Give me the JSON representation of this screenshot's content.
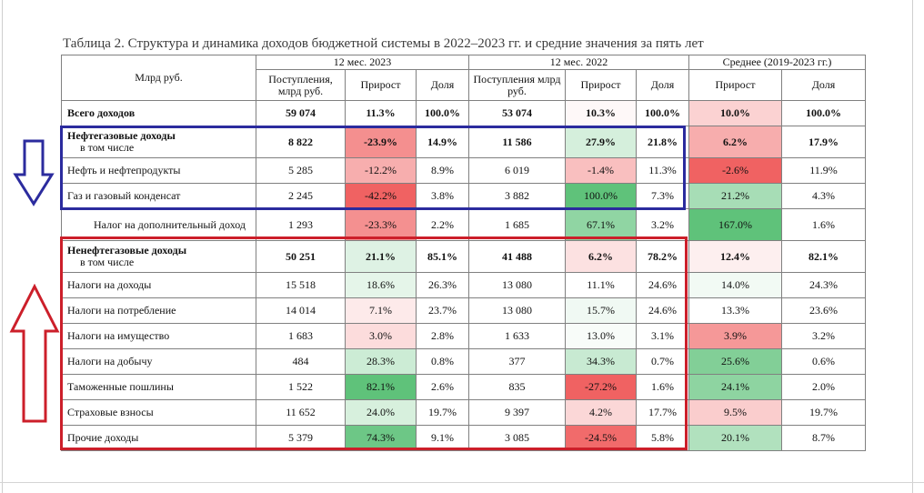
{
  "caption": "Таблица 2. Структура и динамика доходов бюджетной системы в 2022–2023 гг. и средние значения за пять лет",
  "header": {
    "corner": "Млрд руб.",
    "period_2023": "12 мес. 2023",
    "period_2022": "12 мес. 2022",
    "period_avg": "Среднее (2019-2023 гг.)",
    "col_revenue": "Поступления, млрд руб.",
    "col_revenue_2022": "Поступления млрд руб.",
    "col_growth": "Прирост",
    "col_share": "Доля"
  },
  "rows": [
    {
      "label": "Всего доходов",
      "sublabel": "",
      "bold": true,
      "rev23": "59 074",
      "gr23": "11.3%",
      "sh23": "100.0%",
      "rev22": "53 074",
      "gr22": "10.3%",
      "sh22": "100.0%",
      "avg_gr": "10.0%",
      "avg_sh": "100.0%"
    },
    {
      "label": "Нефтегазовые доходы",
      "sublabel": "в том числе",
      "bold": true,
      "rev23": "8 822",
      "gr23": "-23.9%",
      "sh23": "14.9%",
      "rev22": "11 586",
      "gr22": "27.9%",
      "sh22": "21.8%",
      "avg_gr": "6.2%",
      "avg_sh": "17.9%"
    },
    {
      "label": "Нефть и нефтепродукты",
      "sublabel": "",
      "bold": false,
      "rev23": "5 285",
      "gr23": "-12.2%",
      "sh23": "8.9%",
      "rev22": "6 019",
      "gr22": "-1.4%",
      "sh22": "11.3%",
      "avg_gr": "-2.6%",
      "avg_sh": "11.9%"
    },
    {
      "label": "Газ и газовый конденсат",
      "sublabel": "",
      "bold": false,
      "rev23": "2 245",
      "gr23": "-42.2%",
      "sh23": "3.8%",
      "rev22": "3 882",
      "gr22": "100.0%",
      "sh22": "7.3%",
      "avg_gr": "21.2%",
      "avg_sh": "4.3%"
    },
    {
      "label": "Налог на дополнительный доход",
      "sublabel": "",
      "bold": false,
      "indent": true,
      "rev23": "1 293",
      "gr23": "-23.3%",
      "sh23": "2.2%",
      "rev22": "1 685",
      "gr22": "67.1%",
      "sh22": "3.2%",
      "avg_gr": "167.0%",
      "avg_sh": "1.6%"
    },
    {
      "label": "Ненефтегазовые доходы",
      "sublabel": "в том числе",
      "bold": true,
      "rev23": "50 251",
      "gr23": "21.1%",
      "sh23": "85.1%",
      "rev22": "41 488",
      "gr22": "6.2%",
      "sh22": "78.2%",
      "avg_gr": "12.4%",
      "avg_sh": "82.1%"
    },
    {
      "label": "Налоги на доходы",
      "sublabel": "",
      "bold": false,
      "rev23": "15 518",
      "gr23": "18.6%",
      "sh23": "26.3%",
      "rev22": "13 080",
      "gr22": "11.1%",
      "sh22": "24.6%",
      "avg_gr": "14.0%",
      "avg_sh": "24.3%"
    },
    {
      "label": "Налоги на потребление",
      "sublabel": "",
      "bold": false,
      "rev23": "14 014",
      "gr23": "7.1%",
      "sh23": "23.7%",
      "rev22": "13 080",
      "gr22": "15.7%",
      "sh22": "24.6%",
      "avg_gr": "13.3%",
      "avg_sh": "23.6%"
    },
    {
      "label": "Налоги на имущество",
      "sublabel": "",
      "bold": false,
      "rev23": "1 683",
      "gr23": "3.0%",
      "sh23": "2.8%",
      "rev22": "1 633",
      "gr22": "13.0%",
      "sh22": "3.1%",
      "avg_gr": "3.9%",
      "avg_sh": "3.2%"
    },
    {
      "label": "Налоги на добычу",
      "sublabel": "",
      "bold": false,
      "rev23": "484",
      "gr23": "28.3%",
      "sh23": "0.8%",
      "rev22": "377",
      "gr22": "34.3%",
      "sh22": "0.7%",
      "avg_gr": "25.6%",
      "avg_sh": "0.6%"
    },
    {
      "label": "Таможенные пошлины",
      "sublabel": "",
      "bold": false,
      "rev23": "1 522",
      "gr23": "82.1%",
      "sh23": "2.6%",
      "rev22": "835",
      "gr22": "-27.2%",
      "sh22": "1.6%",
      "avg_gr": "24.1%",
      "avg_sh": "2.0%"
    },
    {
      "label": "Страховые взносы",
      "sublabel": "",
      "bold": false,
      "rev23": "11 652",
      "gr23": "24.0%",
      "sh23": "19.7%",
      "rev22": "9 397",
      "gr22": "4.2%",
      "sh22": "17.7%",
      "avg_gr": "9.5%",
      "avg_sh": "19.7%"
    },
    {
      "label": "Прочие доходы",
      "sublabel": "",
      "bold": false,
      "rev23": "5 379",
      "gr23": "74.3%",
      "sh23": "9.1%",
      "rev22": "3 085",
      "gr22": "-24.5%",
      "sh22": "5.8%",
      "avg_gr": "20.1%",
      "avg_sh": "8.7%"
    }
  ],
  "colors": {
    "box_blue": "#2b2b9e",
    "box_red": "#cc1f2a",
    "arrow_down": "#2b2b9e",
    "arrow_up": "#cc1f2a",
    "heat_negative_max": "#f06262",
    "heat_positive_max": "#5fc27a",
    "heat_neutral": "#ffffff"
  },
  "annotations": {
    "down_arrow_icon": "down-arrow-outline",
    "up_arrow_icon": "up-arrow-outline"
  }
}
